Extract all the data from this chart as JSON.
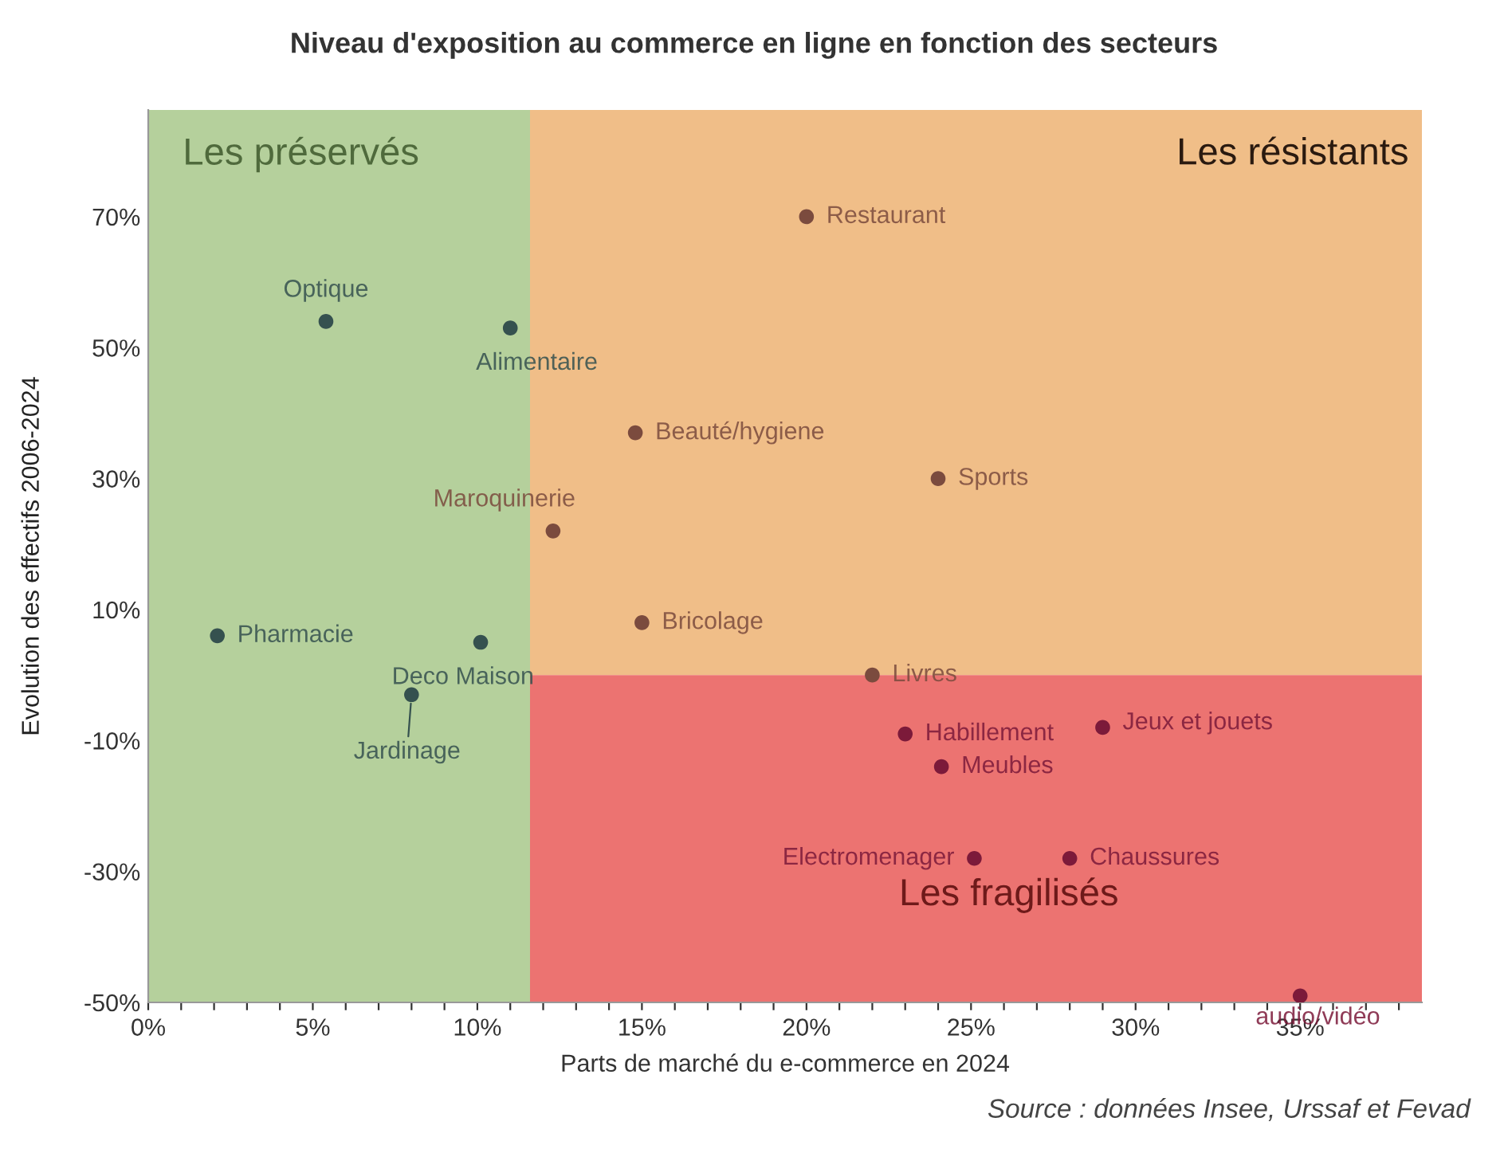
{
  "chart_data": {
    "type": "scatter",
    "title": "Niveau d'exposition au commerce en ligne en fonction des secteurs",
    "xlabel": "Parts de marché du e-commerce en 2024",
    "ylabel": "Evolution des effectifs 2006-2024",
    "x": [
      5.4,
      11.0,
      2.1,
      10.1,
      8.0,
      12.3,
      20.0,
      14.8,
      24.0,
      15.0,
      22.0,
      23.0,
      29.0,
      24.1,
      25.1,
      28.0,
      35.0
    ],
    "values": [
      54,
      53,
      6,
      5,
      -3,
      22,
      70,
      37,
      30,
      8,
      0,
      -9,
      -8,
      -14,
      -28,
      -28,
      -49
    ],
    "colors": [
      "#35514f",
      "#35514f",
      "#35514f",
      "#35514f",
      "#35514f",
      "#7b4b3e",
      "#7b4b3e",
      "#7b4b3e",
      "#7b4b3e",
      "#7b4b3e",
      "#7b4b3e",
      "#7c1a3a",
      "#7c1a3a",
      "#7c1a3a",
      "#7c1a3a",
      "#7c1a3a",
      "#7c1a3a"
    ],
    "annotations": [
      {
        "text": "Optique",
        "x": 5.4,
        "y": 54
      },
      {
        "text": "Alimentaire",
        "x": 11.0,
        "y": 53
      },
      {
        "text": "Pharmacie",
        "x": 2.1,
        "y": 6
      },
      {
        "text": "Deco Maison",
        "x": 10.1,
        "y": 5
      },
      {
        "text": "Jardinage",
        "x": 8.0,
        "y": -3
      },
      {
        "text": "Maroquinerie",
        "x": 12.3,
        "y": 22
      },
      {
        "text": "Restaurant",
        "x": 20.0,
        "y": 70
      },
      {
        "text": "Beauté/hygiene",
        "x": 14.8,
        "y": 37
      },
      {
        "text": "Sports",
        "x": 24.0,
        "y": 30
      },
      {
        "text": "Bricolage",
        "x": 15.0,
        "y": 8
      },
      {
        "text": "Livres",
        "x": 22.0,
        "y": 0
      },
      {
        "text": "Habillement",
        "x": 23.0,
        "y": -9
      },
      {
        "text": "Jeux et jouets",
        "x": 29.0,
        "y": -8
      },
      {
        "text": "Meubles",
        "x": 24.1,
        "y": -14
      },
      {
        "text": "Electromenager",
        "x": 25.1,
        "y": -28
      },
      {
        "text": "Chaussures",
        "x": 28.0,
        "y": -28
      },
      {
        "text": "audio/vidéo",
        "x": 35.0,
        "y": -49
      },
      "Source : données Insee, Urssaf et Fevad"
    ],
    "bands": [
      {
        "axis": "x",
        "from": 0,
        "to": 11.6,
        "label": "Les préservés",
        "color": "#b5d09c"
      },
      {
        "axis": "y",
        "from": 0,
        "to": 86.3,
        "label": "Les résistants",
        "color": "#f0be88"
      },
      {
        "axis": "y",
        "from": -50,
        "to": 0,
        "label": "Les fragilisés",
        "color": "#ec7371"
      }
    ],
    "xlim": [
      0,
      38.7
    ],
    "ylim": [
      -50,
      86.3
    ],
    "xticks": [
      {
        "value": 0,
        "label": "0%"
      },
      {
        "value": 1,
        "label": null
      },
      {
        "value": 2,
        "label": null
      },
      {
        "value": 3,
        "label": null
      },
      {
        "value": 4,
        "label": null
      },
      {
        "value": 5,
        "label": "5%"
      },
      {
        "value": 6,
        "label": null
      },
      {
        "value": 7,
        "label": null
      },
      {
        "value": 8,
        "label": null
      },
      {
        "value": 9,
        "label": null
      },
      {
        "value": 10,
        "label": "10%"
      },
      {
        "value": 11,
        "label": null
      },
      {
        "value": 12,
        "label": null
      },
      {
        "value": 13,
        "label": null
      },
      {
        "value": 14,
        "label": null
      },
      {
        "value": 15,
        "label": "15%"
      },
      {
        "value": 16,
        "label": null
      },
      {
        "value": 17,
        "label": null
      },
      {
        "value": 18,
        "label": null
      },
      {
        "value": 19,
        "label": null
      },
      {
        "value": 20,
        "label": "20%"
      },
      {
        "value": 21,
        "label": null
      },
      {
        "value": 22,
        "label": null
      },
      {
        "value": 23,
        "label": null
      },
      {
        "value": 24,
        "label": null
      },
      {
        "value": 25,
        "label": "25%"
      },
      {
        "value": 26,
        "label": null
      },
      {
        "value": 27,
        "label": null
      },
      {
        "value": 28,
        "label": null
      },
      {
        "value": 29,
        "label": null
      },
      {
        "value": 30,
        "label": "30%"
      },
      {
        "value": 31,
        "label": null
      },
      {
        "value": 32,
        "label": null
      },
      {
        "value": 33,
        "label": null
      },
      {
        "value": 34,
        "label": null
      },
      {
        "value": 35,
        "label": "35%"
      },
      {
        "value": 36,
        "label": null
      },
      {
        "value": 37,
        "label": null
      },
      {
        "value": 38,
        "label": null
      }
    ],
    "yticks": [
      {
        "value": -50,
        "label": "-50%"
      },
      {
        "value": -30,
        "label": "-30%"
      },
      {
        "value": -10,
        "label": "-10%"
      },
      {
        "value": 10,
        "label": "10%"
      },
      {
        "value": 30,
        "label": "30%"
      },
      {
        "value": 50,
        "label": "50%"
      },
      {
        "value": 70,
        "label": "70%"
      }
    ],
    "grid": false,
    "legend": false,
    "marker": "circle"
  }
}
